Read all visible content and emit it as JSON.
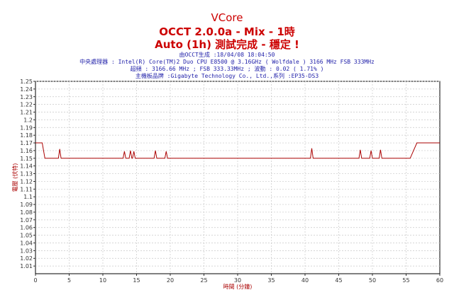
{
  "header": {
    "title": "VCore",
    "subtitle": "OCCT 2.0.0a - Mix - 1時",
    "status": "Auto (1h) 測試完成 - 穩定 !",
    "generated": "由OCCT生成 :18/04/08 18:04:50",
    "cpu": "中央處理器 : Intel(R) Core(TM)2 Duo CPU E8500 @ 3.16GHz ( Wolfdale ) 3166 MHz FSB 333MHz",
    "oc": "超頻 : 3166.66 MHz ; FSB 333.33MHz ; 波動 : 0.02 ( 1.71% )",
    "board": "主機板品牌 :Gigabyte Technology Co., Ltd.,系列 :EP35-DS3"
  },
  "chart_data": {
    "type": "line",
    "xlabel": "時間 (分鐘)",
    "ylabel": "電壓 (伏特)",
    "xlim": [
      0,
      60
    ],
    "ylim": [
      1.0,
      1.25
    ],
    "xticks": [
      0,
      5,
      10,
      15,
      20,
      25,
      30,
      35,
      40,
      45,
      50,
      55,
      60
    ],
    "yticks": [
      1.01,
      1.02,
      1.03,
      1.04,
      1.05,
      1.06,
      1.07,
      1.08,
      1.09,
      1.1,
      1.11,
      1.12,
      1.13,
      1.14,
      1.15,
      1.16,
      1.17,
      1.18,
      1.19,
      1.2,
      1.21,
      1.22,
      1.23,
      1.24,
      1.25
    ],
    "ytick_labels": [
      "1.01",
      "1.02",
      "1.03",
      "1.04",
      "1.05",
      "1.06",
      "1.07",
      "1.08",
      "1.09",
      "1.1",
      "1.11",
      "1.12",
      "1.13",
      "1.14",
      "1.15",
      "1.16",
      "1.17",
      "1.18",
      "1.19",
      "1.2",
      "1.21",
      "1.22",
      "1.23",
      "1.24",
      "1.25"
    ],
    "grid": true,
    "series": [
      {
        "color": "#aa0000",
        "x": [
          0,
          1.0,
          1.4,
          3.4,
          3.6,
          3.8,
          13.0,
          13.2,
          13.4,
          13.9,
          14.1,
          14.3,
          14.4,
          14.6,
          14.8,
          17.6,
          17.8,
          18.0,
          19.2,
          19.4,
          19.6,
          40.8,
          41.0,
          41.2,
          48.0,
          48.2,
          48.4,
          49.6,
          49.8,
          50.0,
          51.0,
          51.2,
          51.4,
          55.6,
          56.6,
          60
        ],
        "y": [
          1.17,
          1.17,
          1.15,
          1.15,
          1.162,
          1.15,
          1.15,
          1.159,
          1.15,
          1.15,
          1.16,
          1.15,
          1.15,
          1.159,
          1.15,
          1.15,
          1.16,
          1.15,
          1.15,
          1.159,
          1.15,
          1.15,
          1.163,
          1.15,
          1.15,
          1.161,
          1.15,
          1.15,
          1.16,
          1.15,
          1.15,
          1.161,
          1.15,
          1.15,
          1.17,
          1.17
        ]
      }
    ]
  }
}
